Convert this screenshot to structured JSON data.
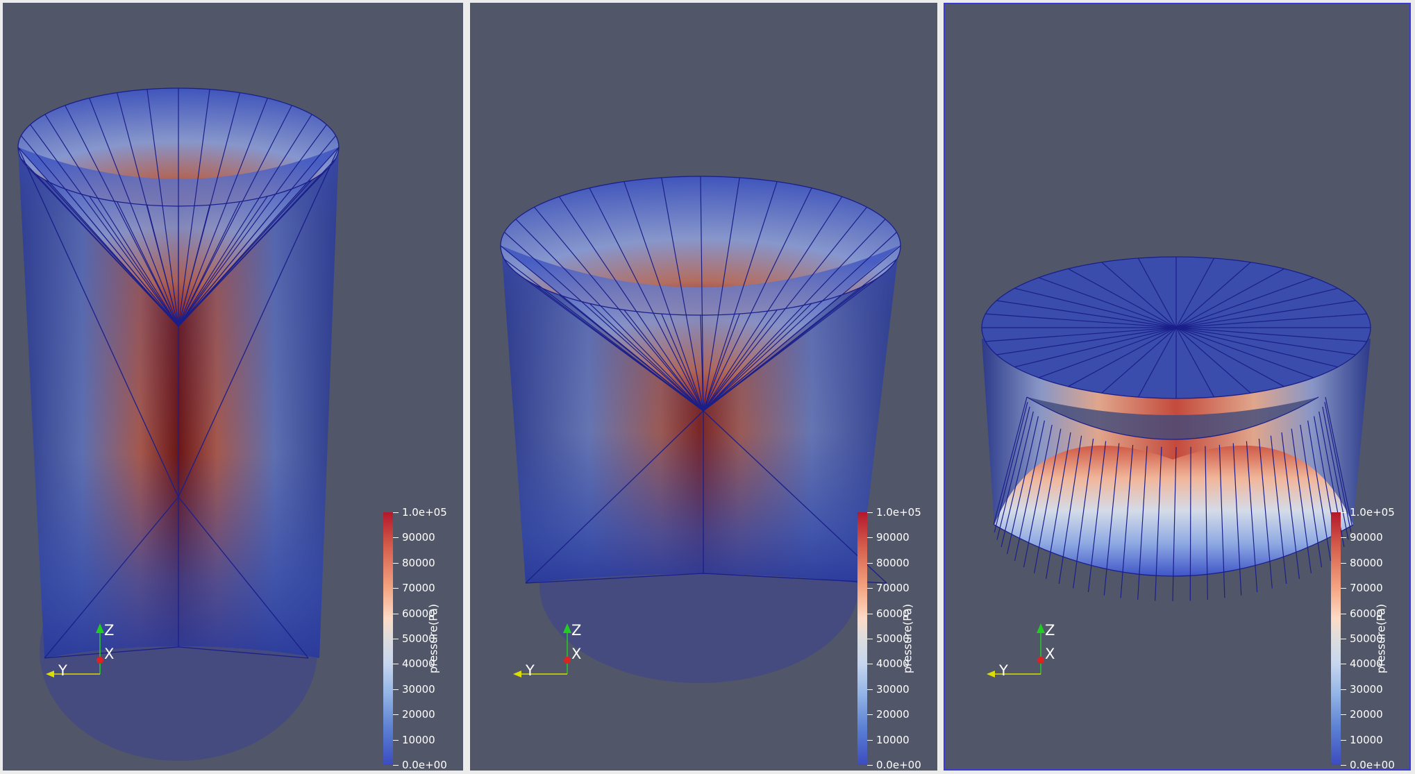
{
  "views": [
    {
      "name": "view-1",
      "active": false,
      "colorbar": {
        "title": "pressure(Pa)",
        "labels": [
          "1.0e+05",
          "90000",
          "80000",
          "70000",
          "60000",
          "50000",
          "40000",
          "30000",
          "20000",
          "10000",
          "0.0e+00"
        ]
      },
      "axes": {
        "z": "Z",
        "x": "X",
        "y": "Y"
      }
    },
    {
      "name": "view-2",
      "active": false,
      "colorbar": {
        "title": "pressure(Pa)",
        "labels": [
          "1.0e+05",
          "90000",
          "80000",
          "70000",
          "60000",
          "50000",
          "40000",
          "30000",
          "20000",
          "10000",
          "0.0e+00"
        ]
      },
      "axes": {
        "z": "Z",
        "x": "X",
        "y": "Y"
      }
    },
    {
      "name": "view-3",
      "active": true,
      "colorbar": {
        "title": "pressure(Pa)",
        "labels": [
          "1.0e+05",
          "90000",
          "80000",
          "70000",
          "60000",
          "50000",
          "40000",
          "30000",
          "20000",
          "10000",
          "0.0e+00"
        ]
      },
      "axes": {
        "z": "Z",
        "x": "X",
        "y": "Y"
      }
    }
  ],
  "colors": {
    "background": "#525669",
    "active_border": "#3a3ad8",
    "colormap_high": "#b2182b",
    "colormap_mid": "#dddddd",
    "colormap_low": "#3b4cc0",
    "mesh_edges": "#1a1f8a",
    "axis_z": "#22cc22",
    "axis_x": "#dd2222",
    "axis_y": "#dddd00"
  }
}
